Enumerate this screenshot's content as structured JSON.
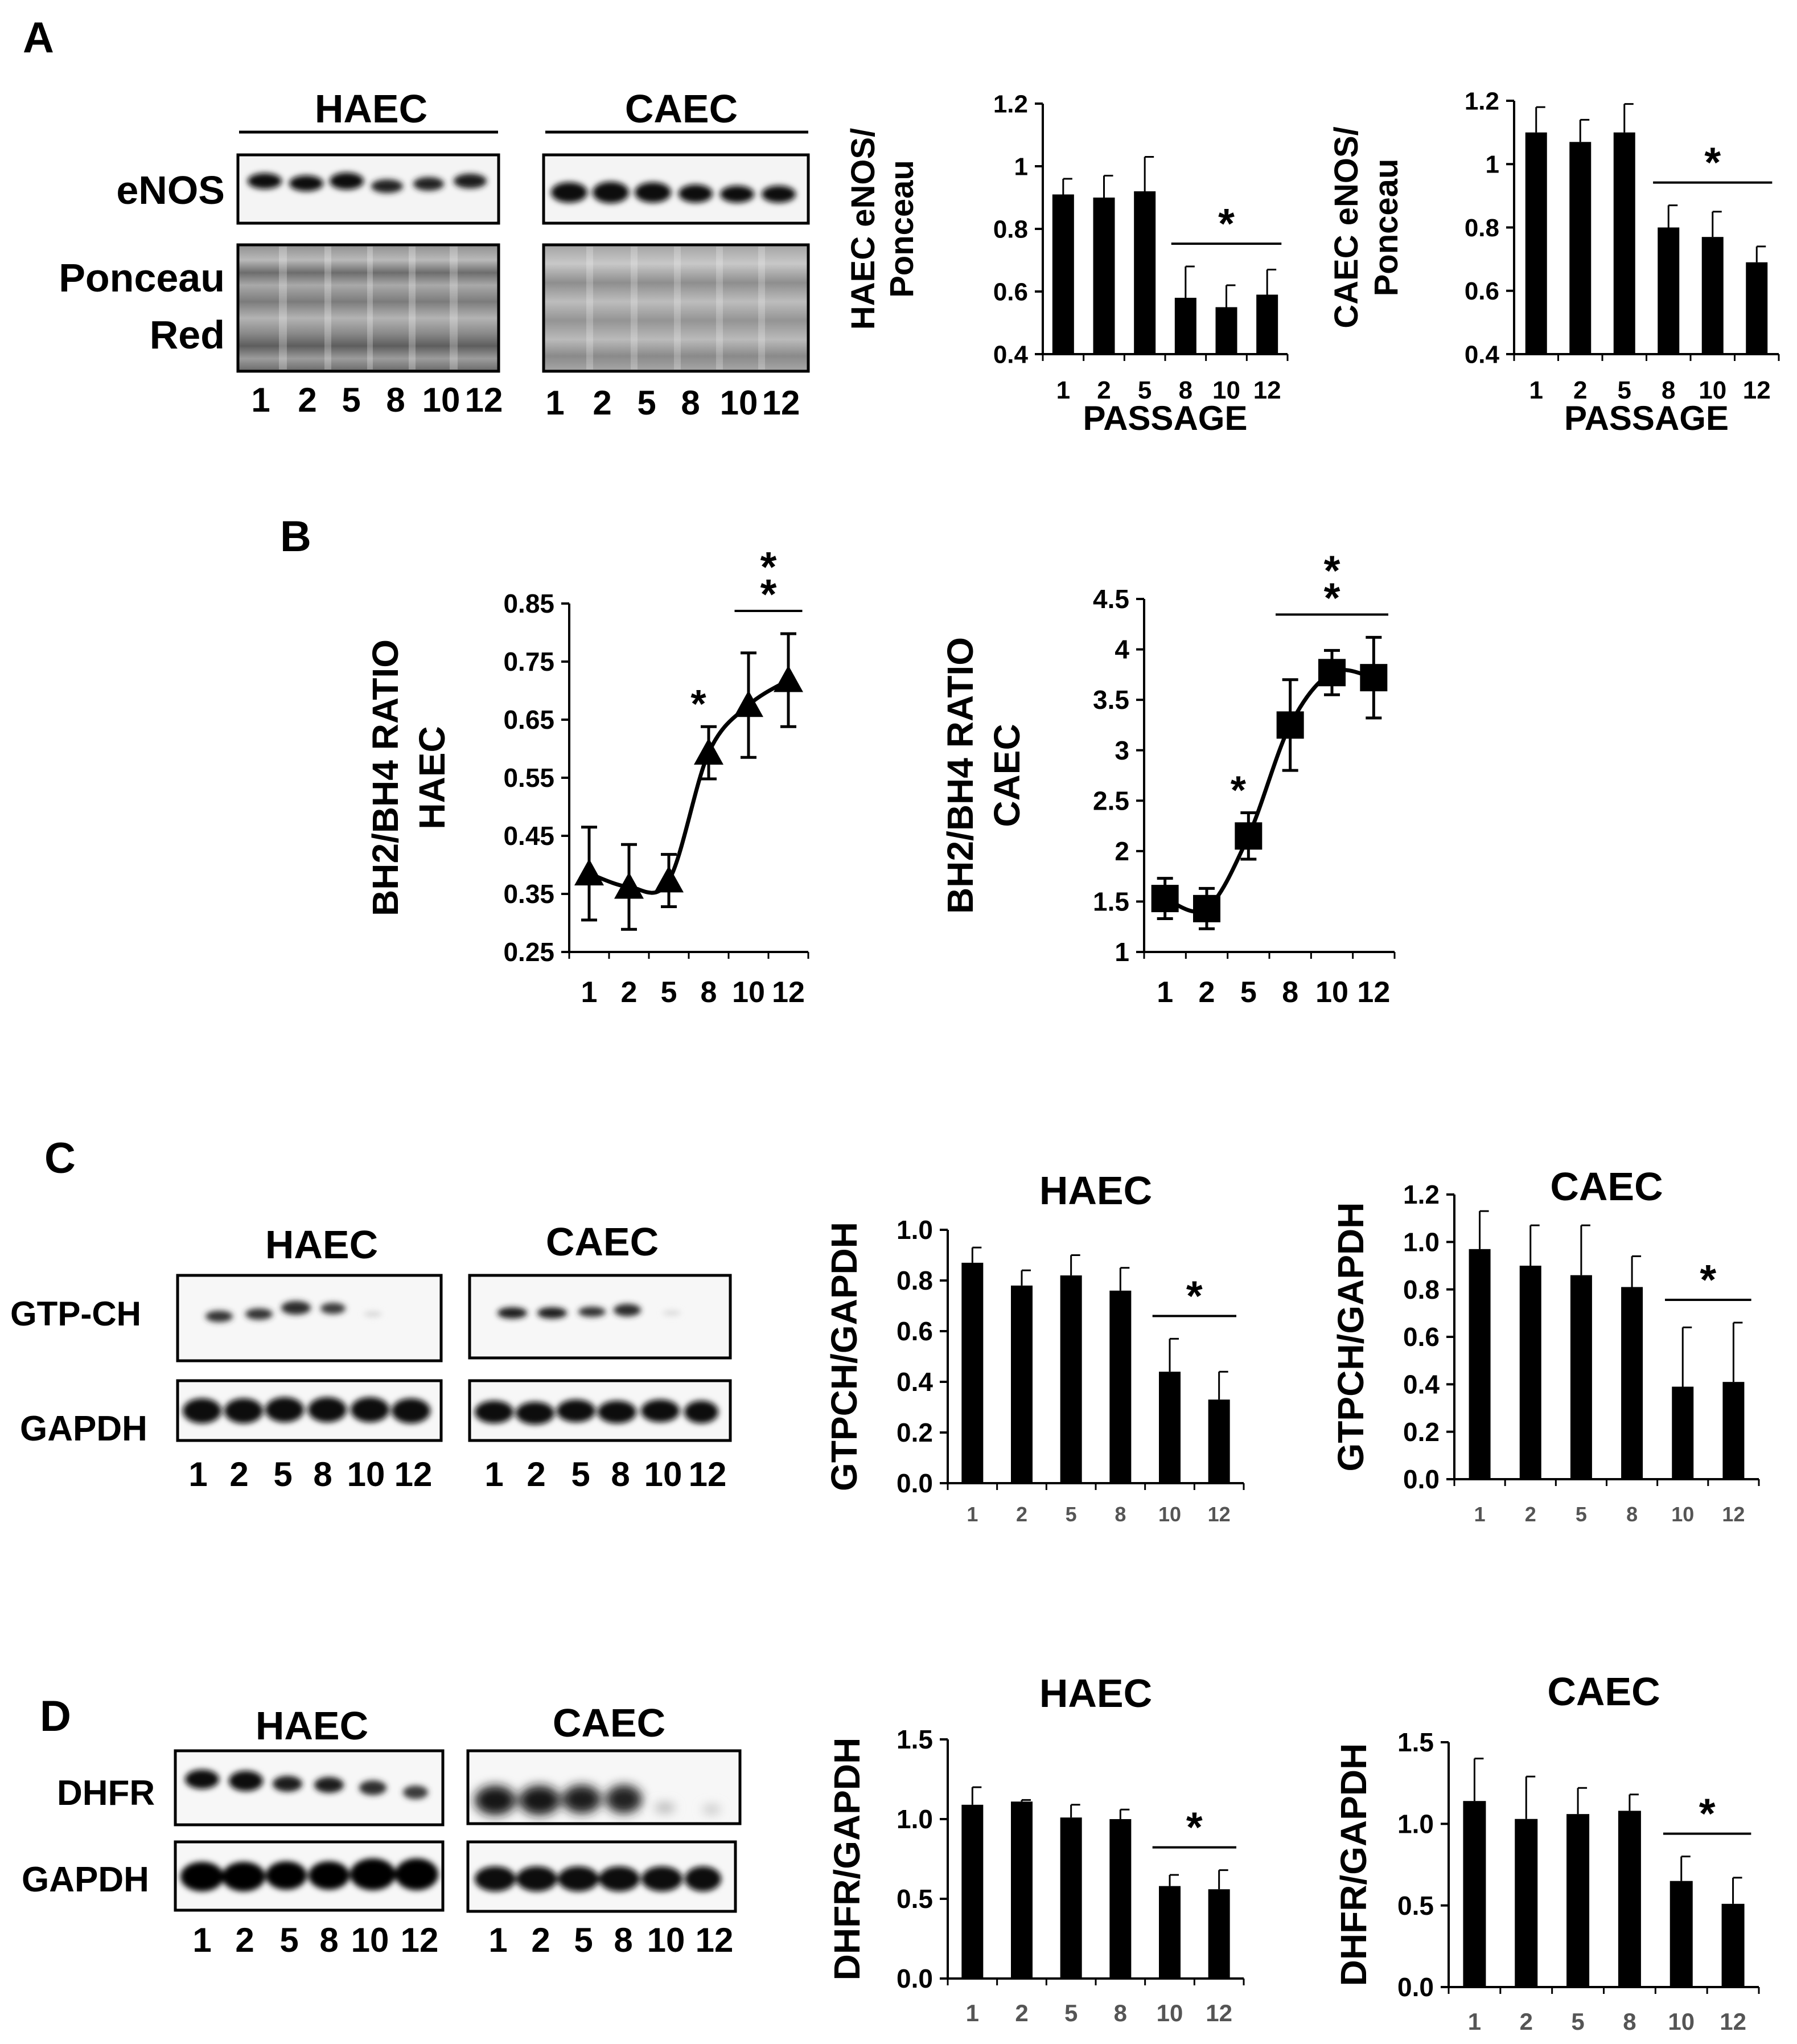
{
  "panel_labels": [
    "A",
    "B",
    "C",
    "D"
  ],
  "lane_labels": [
    "1",
    "2",
    "5",
    "8",
    "10",
    "12"
  ],
  "blots": {
    "A": {
      "cell_lines": [
        "HAEC",
        "CAEC"
      ],
      "rows": [
        "eNOS",
        "Ponceau",
        "Red"
      ]
    },
    "C": {
      "cell_lines": [
        "HAEC",
        "CAEC"
      ],
      "rows": [
        "GTP-CH",
        "GAPDH"
      ]
    },
    "D": {
      "cell_lines": [
        "HAEC",
        "CAEC"
      ],
      "rows": [
        "DHFR",
        "GAPDH"
      ]
    }
  },
  "chart_data": [
    {
      "id": "A1",
      "type": "bar",
      "panel": "A",
      "title": "",
      "ylabel": [
        "HAEC eNOS/",
        "Ponceau"
      ],
      "xlabel": "PASSAGE",
      "categories": [
        "1",
        "2",
        "5",
        "8",
        "10",
        "12"
      ],
      "values": [
        0.91,
        0.9,
        0.92,
        0.58,
        0.55,
        0.59
      ],
      "errors": [
        0.05,
        0.07,
        0.11,
        0.1,
        0.07,
        0.08
      ],
      "ylim": [
        0.4,
        1.2
      ],
      "yticks": [
        "0.4",
        "0.6",
        "0.8",
        "1",
        "1.2"
      ],
      "significance": {
        "label": "*",
        "from": "8",
        "to": "12"
      }
    },
    {
      "id": "A2",
      "type": "bar",
      "panel": "A",
      "title": "",
      "ylabel": [
        "CAEC eNOS/",
        "Ponceau"
      ],
      "xlabel": "PASSAGE",
      "categories": [
        "1",
        "2",
        "5",
        "8",
        "10",
        "12"
      ],
      "values": [
        1.1,
        1.07,
        1.1,
        0.8,
        0.77,
        0.69
      ],
      "errors": [
        0.08,
        0.07,
        0.09,
        0.07,
        0.08,
        0.05
      ],
      "ylim": [
        0.4,
        1.2
      ],
      "yticks": [
        "0.4",
        "0.6",
        "0.8",
        "1",
        "1.2"
      ],
      "significance": {
        "label": "*",
        "from": "8",
        "to": "12"
      }
    },
    {
      "id": "B1",
      "type": "line",
      "panel": "B",
      "title": "",
      "ylabel": [
        "BH2/BH4 RATIO",
        "HAEC"
      ],
      "xlabel": "",
      "categories": [
        "1",
        "2",
        "5",
        "8",
        "10",
        "12"
      ],
      "values": [
        0.385,
        0.362,
        0.373,
        0.593,
        0.675,
        0.718
      ],
      "errors": [
        0.08,
        0.073,
        0.045,
        0.045,
        0.09,
        0.08
      ],
      "marker": "triangle",
      "ylim": [
        0.25,
        0.85
      ],
      "yticks": [
        "0.25",
        "0.35",
        "0.45",
        "0.55",
        "0.65",
        "0.75",
        "0.85"
      ],
      "point_marks": [
        {
          "category": "8",
          "label": "*"
        }
      ],
      "significance": {
        "label": "**",
        "from": "10",
        "to": "12"
      }
    },
    {
      "id": "B2",
      "type": "line",
      "panel": "B",
      "title": "",
      "ylabel": [
        "BH2/BH4 RATIO",
        "CAEC"
      ],
      "xlabel": "",
      "categories": [
        "1",
        "2",
        "5",
        "8",
        "10",
        "12"
      ],
      "values": [
        1.53,
        1.43,
        2.15,
        3.25,
        3.77,
        3.72
      ],
      "errors": [
        0.2,
        0.2,
        0.23,
        0.45,
        0.22,
        0.4
      ],
      "marker": "square",
      "ylim": [
        1,
        4.5
      ],
      "yticks": [
        "1",
        "1.5",
        "2",
        "2.5",
        "3",
        "3.5",
        "4",
        "4.5"
      ],
      "point_marks": [
        {
          "category": "5",
          "label": "*"
        }
      ],
      "significance": {
        "label": "**",
        "from": "8",
        "to": "12"
      }
    },
    {
      "id": "C1",
      "type": "bar",
      "panel": "C",
      "title": "HAEC",
      "ylabel": [
        "GTPCH/GAPDH"
      ],
      "xlabel": "",
      "categories": [
        "1",
        "2",
        "5",
        "8",
        "10",
        "12"
      ],
      "values": [
        0.87,
        0.78,
        0.82,
        0.76,
        0.44,
        0.33
      ],
      "errors": [
        0.06,
        0.06,
        0.08,
        0.09,
        0.13,
        0.11
      ],
      "ylim": [
        0.0,
        1.0
      ],
      "yticks": [
        "0.0",
        "0.2",
        "0.4",
        "0.6",
        "0.8",
        "1.0"
      ],
      "significance": {
        "label": "*",
        "from": "10",
        "to": "12"
      }
    },
    {
      "id": "C2",
      "type": "bar",
      "panel": "C",
      "title": "CAEC",
      "ylabel": [
        "GTPCH/GAPDH"
      ],
      "xlabel": "",
      "categories": [
        "1",
        "2",
        "5",
        "8",
        "10",
        "12"
      ],
      "values": [
        0.97,
        0.9,
        0.86,
        0.81,
        0.39,
        0.41
      ],
      "errors": [
        0.16,
        0.17,
        0.21,
        0.13,
        0.25,
        0.25
      ],
      "ylim": [
        0.0,
        1.2
      ],
      "yticks": [
        "0.0",
        "0.2",
        "0.4",
        "0.6",
        "0.8",
        "1.0",
        "1.2"
      ],
      "significance": {
        "label": "*",
        "from": "10",
        "to": "12"
      }
    },
    {
      "id": "D1",
      "type": "bar",
      "panel": "D",
      "title": "HAEC",
      "ylabel": [
        "DHFR/GAPDH"
      ],
      "xlabel": "",
      "categories": [
        "1",
        "2",
        "5",
        "8",
        "10",
        "12"
      ],
      "values": [
        1.09,
        1.11,
        1.01,
        1.0,
        0.58,
        0.56
      ],
      "errors": [
        0.11,
        0.01,
        0.08,
        0.06,
        0.07,
        0.12
      ],
      "ylim": [
        0.0,
        1.5
      ],
      "yticks": [
        "0.0",
        "0.5",
        "1.0",
        "1.5"
      ],
      "significance": {
        "label": "*",
        "from": "10",
        "to": "12"
      }
    },
    {
      "id": "D2",
      "type": "bar",
      "panel": "D",
      "title": "CAEC",
      "ylabel": [
        "DHFR/GAPDH"
      ],
      "xlabel": "",
      "categories": [
        "1",
        "2",
        "5",
        "8",
        "10",
        "12"
      ],
      "values": [
        1.14,
        1.03,
        1.06,
        1.08,
        0.65,
        0.51
      ],
      "errors": [
        0.26,
        0.26,
        0.16,
        0.1,
        0.15,
        0.16
      ],
      "ylim": [
        0.0,
        1.5
      ],
      "yticks": [
        "0.0",
        "0.5",
        "1.0",
        "1.5"
      ],
      "significance": {
        "label": "*",
        "from": "10",
        "to": "12"
      }
    }
  ]
}
